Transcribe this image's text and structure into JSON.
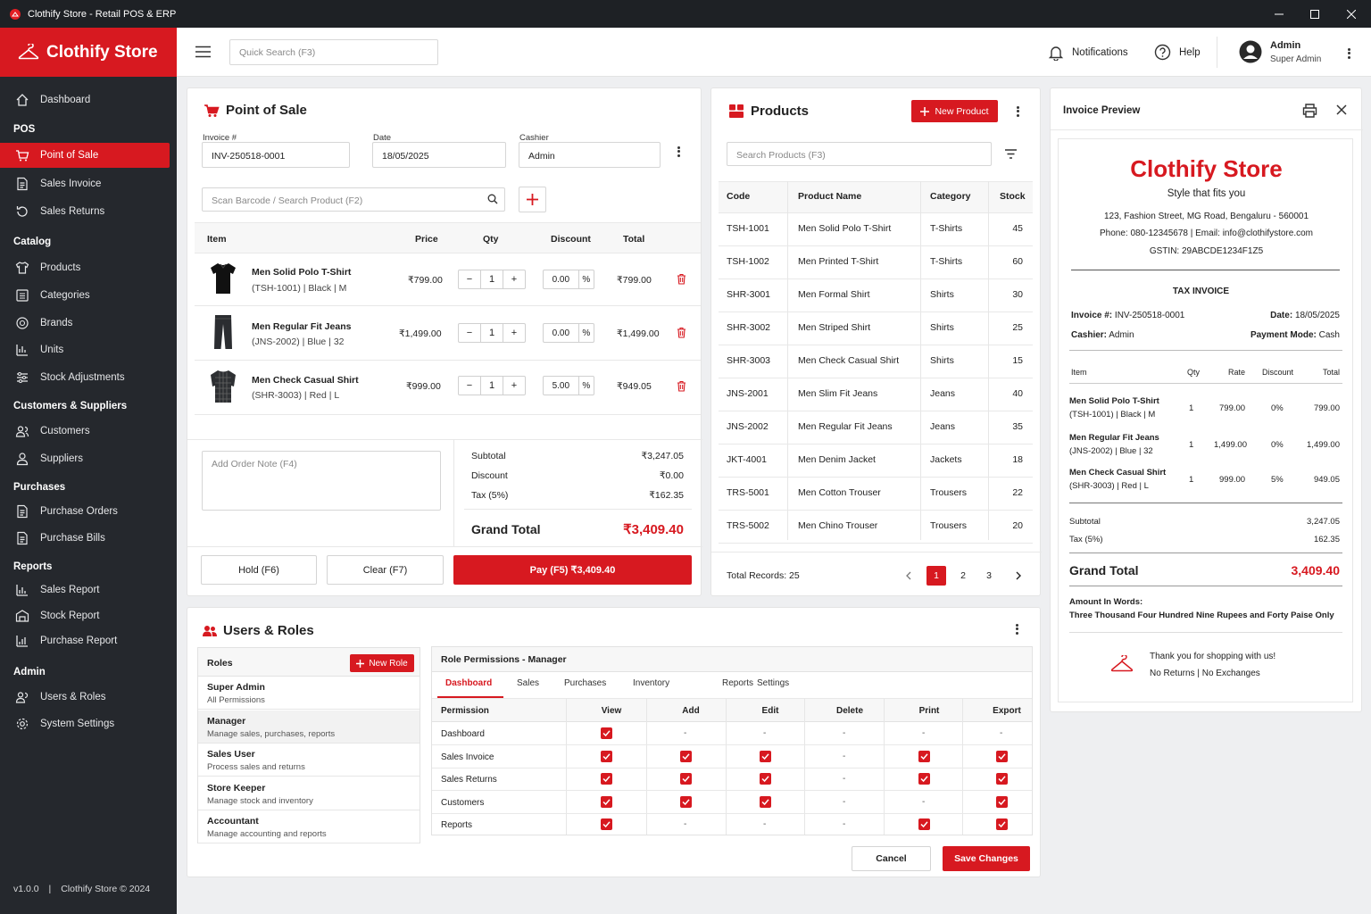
{
  "window": {
    "title": "Clothify Store - Retail POS & ERP"
  },
  "brand": {
    "name": "Clothify Store"
  },
  "sidebar": {
    "dashboard": "Dashboard",
    "sections": {
      "pos": "POS",
      "catalog": "Catalog",
      "customers_suppliers": "Customers & Suppliers",
      "purchases": "Purchases",
      "reports": "Reports",
      "admin": "Admin"
    },
    "items": {
      "point_of_sale": "Point of Sale",
      "sales_invoice": "Sales Invoice",
      "sales_returns": "Sales Returns",
      "products": "Products",
      "categories": "Categories",
      "brands": "Brands",
      "units": "Units",
      "stock_adjustments": "Stock Adjustments",
      "customers": "Customers",
      "suppliers": "Suppliers",
      "purchase_orders": "Purchase Orders",
      "purchase_bills": "Purchase Bills",
      "sales_report": "Sales Report",
      "stock_report": "Stock Report",
      "purchase_report": "Purchase Report",
      "users_roles": "Users & Roles",
      "system_settings": "System Settings"
    },
    "footer": {
      "version": "v1.0.0",
      "copyright": "Clothify Store © 2024"
    }
  },
  "topbar": {
    "search_placeholder": "Quick Search (F3)",
    "notifications": "Notifications",
    "help": "Help",
    "user_name": "Admin",
    "user_role": "Super Admin"
  },
  "pos": {
    "title": "Point of Sale",
    "invoice_label": "Invoice #",
    "invoice_value": "INV-250518-0001",
    "date_label": "Date",
    "date_value": "18/05/2025",
    "cashier_label": "Cashier",
    "cashier_value": "Admin",
    "scan_placeholder": "Scan Barcode / Search Product (F2)",
    "columns": {
      "item": "Item",
      "price": "Price",
      "qty": "Qty",
      "discount": "Discount",
      "total": "Total"
    },
    "items": [
      {
        "name": "Men Solid Polo T-Shirt",
        "sub": "(TSH-1001) | Black | M",
        "price": "₹799.00",
        "qty": "1",
        "discount": "0.00",
        "total": "₹799.00"
      },
      {
        "name": "Men Regular Fit Jeans",
        "sub": "(JNS-2002) | Blue | 32",
        "price": "₹1,499.00",
        "qty": "1",
        "discount": "0.00",
        "total": "₹1,499.00"
      },
      {
        "name": "Men Check Casual Shirt",
        "sub": "(SHR-3003) | Red | L",
        "price": "₹999.00",
        "qty": "1",
        "discount": "5.00",
        "total": "₹949.05"
      }
    ],
    "percent": "%",
    "minus": "−",
    "plus": "+",
    "note_placeholder": "Add Order Note (F4)",
    "subtotal_label": "Subtotal",
    "subtotal": "₹3,247.05",
    "discount_label": "Discount",
    "discount": "₹0.00",
    "tax_label": "Tax (5%)",
    "tax": "₹162.35",
    "grand_label": "Grand Total",
    "grand": "₹3,409.40",
    "hold": "Hold (F6)",
    "clear": "Clear (F7)",
    "pay": "Pay (F5)  ₹3,409.40"
  },
  "products": {
    "title": "Products",
    "new_button": "New Product",
    "search_placeholder": "Search Products (F3)",
    "columns": {
      "code": "Code",
      "name": "Product Name",
      "category": "Category",
      "stock": "Stock"
    },
    "rows": [
      {
        "code": "TSH-1001",
        "name": "Men Solid Polo T-Shirt",
        "category": "T-Shirts",
        "stock": "45"
      },
      {
        "code": "TSH-1002",
        "name": "Men Printed T-Shirt",
        "category": "T-Shirts",
        "stock": "60"
      },
      {
        "code": "SHR-3001",
        "name": "Men Formal Shirt",
        "category": "Shirts",
        "stock": "30"
      },
      {
        "code": "SHR-3002",
        "name": "Men Striped Shirt",
        "category": "Shirts",
        "stock": "25"
      },
      {
        "code": "SHR-3003",
        "name": "Men Check Casual Shirt",
        "category": "Shirts",
        "stock": "15"
      },
      {
        "code": "JNS-2001",
        "name": "Men Slim Fit Jeans",
        "category": "Jeans",
        "stock": "40"
      },
      {
        "code": "JNS-2002",
        "name": "Men Regular Fit Jeans",
        "category": "Jeans",
        "stock": "35"
      },
      {
        "code": "JKT-4001",
        "name": "Men Denim Jacket",
        "category": "Jackets",
        "stock": "18"
      },
      {
        "code": "TRS-5001",
        "name": "Men Cotton Trouser",
        "category": "Trousers",
        "stock": "22"
      },
      {
        "code": "TRS-5002",
        "name": "Men Chino Trouser",
        "category": "Trousers",
        "stock": "20"
      }
    ],
    "total_records": "Total Records: 25",
    "pages": [
      "1",
      "2",
      "3"
    ]
  },
  "invoice": {
    "title": "Invoice Preview",
    "store": "Clothify Store",
    "tagline": "Style that fits you",
    "address": "123, Fashion Street, MG Road, Bengaluru - 560001",
    "contact": "Phone: 080-12345678 | Email: info@clothifystore.com",
    "gstin": "GSTIN: 29ABCDE1234F1Z5",
    "heading": "TAX INVOICE",
    "invoice_label": "Invoice #:",
    "invoice_value": "INV-250518-0001",
    "date_label": "Date:",
    "date_value": "18/05/2025",
    "cashier_label": "Cashier:",
    "cashier_value": "Admin",
    "payment_label": "Payment Mode:",
    "payment_value": "Cash",
    "columns": {
      "item": "Item",
      "qty": "Qty",
      "rate": "Rate",
      "discount": "Discount",
      "total": "Total"
    },
    "items": [
      {
        "name": "Men Solid Polo T-Shirt",
        "sub": "(TSH-1001) | Black | M",
        "qty": "1",
        "rate": "799.00",
        "discount": "0%",
        "total": "799.00"
      },
      {
        "name": "Men Regular Fit Jeans",
        "sub": "(JNS-2002) | Blue | 32",
        "qty": "1",
        "rate": "1,499.00",
        "discount": "0%",
        "total": "1,499.00"
      },
      {
        "name": "Men Check Casual Shirt",
        "sub": "(SHR-3003) | Red | L",
        "qty": "1",
        "rate": "999.00",
        "discount": "5%",
        "total": "949.05"
      }
    ],
    "subtotal_label": "Subtotal",
    "subtotal": "3,247.05",
    "tax_label": "Tax (5%)",
    "tax": "162.35",
    "grand_label": "Grand Total",
    "grand": "3,409.40",
    "words_label": "Amount In Words:",
    "words": "Three Thousand Four Hundred Nine Rupees and Forty Paise Only",
    "thanks": "Thank you for shopping with us!",
    "policy": "No Returns  |  No Exchanges"
  },
  "users": {
    "title": "Users & Roles",
    "roles_label": "Roles",
    "new_role": "New Role",
    "roles": [
      {
        "name": "Super Admin",
        "desc": "All Permissions"
      },
      {
        "name": "Manager",
        "desc": "Manage sales, purchases, reports"
      },
      {
        "name": "Sales User",
        "desc": "Process sales and returns"
      },
      {
        "name": "Store Keeper",
        "desc": "Manage stock and inventory"
      },
      {
        "name": "Accountant",
        "desc": "Manage accounting and reports"
      }
    ],
    "perm_title": "Role Permissions - Manager",
    "tabs": [
      "Dashboard",
      "Sales",
      "Purchases",
      "Inventory",
      "Reports",
      "Settings"
    ],
    "perm_columns": [
      "Permission",
      "View",
      "Add",
      "Edit",
      "Delete",
      "Print",
      "Export"
    ],
    "perm_rows": [
      {
        "name": "Dashboard",
        "flags": [
          true,
          false,
          false,
          false,
          false,
          false
        ]
      },
      {
        "name": "Sales Invoice",
        "flags": [
          true,
          true,
          true,
          false,
          true,
          true
        ]
      },
      {
        "name": "Sales Returns",
        "flags": [
          true,
          true,
          true,
          false,
          true,
          true
        ]
      },
      {
        "name": "Customers",
        "flags": [
          true,
          true,
          true,
          false,
          false,
          true
        ]
      },
      {
        "name": "Reports",
        "flags": [
          true,
          false,
          false,
          false,
          true,
          true
        ]
      }
    ],
    "dash": "-",
    "cancel": "Cancel",
    "save": "Save Changes"
  },
  "colors": {
    "accent": "#d71920",
    "sidebar": "#25282d",
    "titlebar": "#1e2125"
  }
}
